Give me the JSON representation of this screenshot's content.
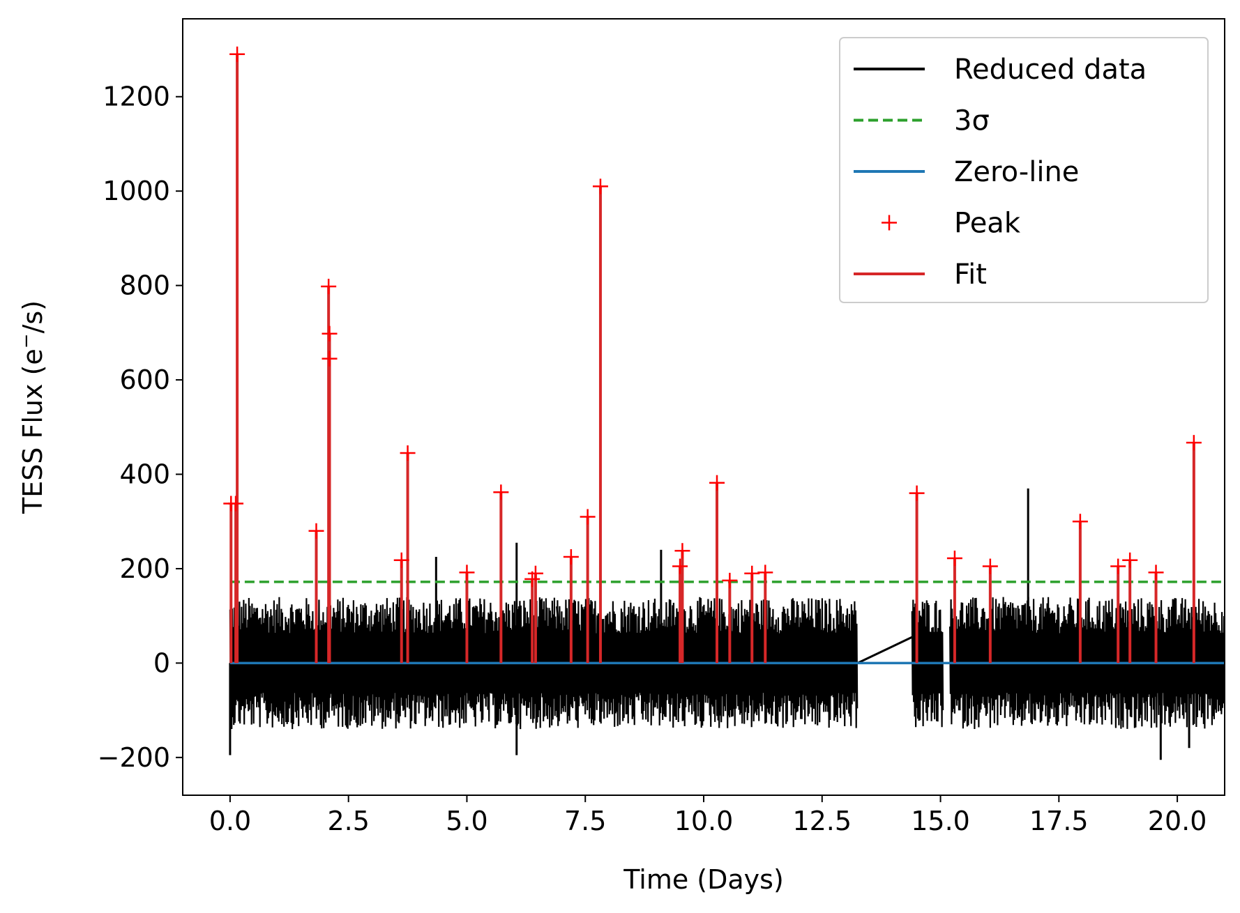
{
  "chart_data": {
    "type": "line",
    "xlabel": "Time (Days)",
    "ylabel_main": "TESS Flux (e",
    "ylabel_sup": "−",
    "ylabel_tail": "/s)",
    "xlim": [
      -1.0,
      21.0
    ],
    "ylim": [
      -280,
      1365
    ],
    "xticks": [
      {
        "v": 0.0,
        "label": "0.0"
      },
      {
        "v": 2.5,
        "label": "2.5"
      },
      {
        "v": 5.0,
        "label": "5.0"
      },
      {
        "v": 7.5,
        "label": "7.5"
      },
      {
        "v": 10.0,
        "label": "10.0"
      },
      {
        "v": 12.5,
        "label": "12.5"
      },
      {
        "v": 15.0,
        "label": "15.0"
      },
      {
        "v": 17.5,
        "label": "17.5"
      },
      {
        "v": 20.0,
        "label": "20.0"
      }
    ],
    "yticks": [
      {
        "v": -200,
        "label": "−200"
      },
      {
        "v": 0,
        "label": "0"
      },
      {
        "v": 200,
        "label": "200"
      },
      {
        "v": 400,
        "label": "400"
      },
      {
        "v": 600,
        "label": "600"
      },
      {
        "v": 800,
        "label": "800"
      },
      {
        "v": 1000,
        "label": "1000"
      },
      {
        "v": 1200,
        "label": "1200"
      }
    ],
    "legend": {
      "placement": "top-right",
      "entries": [
        {
          "label": "Reduced data",
          "color": "#000000",
          "style": "solid"
        },
        {
          "label": "3σ",
          "color": "#2ca02c",
          "style": "dashed"
        },
        {
          "label": "Zero-line",
          "color": "#1f77b4",
          "style": "solid"
        },
        {
          "label": "Peak",
          "color": "#ff0000",
          "style": "marker"
        },
        {
          "label": "Fit",
          "color": "#d62728",
          "style": "solid"
        }
      ]
    },
    "reduced_data": {
      "color": "#000000",
      "segments": [
        {
          "x_start": 0.0,
          "x_end": 13.25,
          "noise_low": -140,
          "noise_high": 140
        },
        {
          "x_start": 14.4,
          "x_end": 15.05,
          "noise_low": -140,
          "noise_high": 140
        },
        {
          "x_start": 15.2,
          "x_end": 21.0,
          "noise_low": -140,
          "noise_high": 140
        }
      ],
      "gap_bridges": [
        {
          "x": [
            13.25,
            14.4
          ],
          "y": [
            0,
            55
          ]
        },
        {
          "x": [
            6.9,
            7.05
          ],
          "y": [
            120,
            -40
          ]
        }
      ],
      "spikes": [
        {
          "x": 6.05,
          "y": 255
        },
        {
          "x": 4.35,
          "y": 225
        },
        {
          "x": 9.1,
          "y": 240
        },
        {
          "x": 16.85,
          "y": 370
        },
        {
          "x": 0.0,
          "y": -195
        },
        {
          "x": 6.05,
          "y": -195
        },
        {
          "x": 19.65,
          "y": -205
        },
        {
          "x": 20.25,
          "y": -180
        }
      ]
    },
    "three_sigma": {
      "y": 172,
      "color": "#2ca02c"
    },
    "zero_line": {
      "y": 0,
      "color": "#1f77b4"
    },
    "peaks": [
      {
        "x": 0.02,
        "y": 338
      },
      {
        "x": 0.12,
        "y": 338
      },
      {
        "x": 0.15,
        "y": 1290
      },
      {
        "x": 1.82,
        "y": 280
      },
      {
        "x": 2.08,
        "y": 798
      },
      {
        "x": 2.1,
        "y": 698
      },
      {
        "x": 2.1,
        "y": 645
      },
      {
        "x": 3.62,
        "y": 218
      },
      {
        "x": 3.75,
        "y": 445
      },
      {
        "x": 5.0,
        "y": 192
      },
      {
        "x": 5.72,
        "y": 362
      },
      {
        "x": 6.38,
        "y": 178
      },
      {
        "x": 6.45,
        "y": 190
      },
      {
        "x": 7.2,
        "y": 225
      },
      {
        "x": 7.55,
        "y": 310
      },
      {
        "x": 7.82,
        "y": 1010
      },
      {
        "x": 9.5,
        "y": 205
      },
      {
        "x": 9.55,
        "y": 238
      },
      {
        "x": 10.28,
        "y": 382
      },
      {
        "x": 10.55,
        "y": 175
      },
      {
        "x": 11.02,
        "y": 190
      },
      {
        "x": 11.3,
        "y": 192
      },
      {
        "x": 14.5,
        "y": 360
      },
      {
        "x": 15.3,
        "y": 222
      },
      {
        "x": 16.05,
        "y": 205
      },
      {
        "x": 17.95,
        "y": 300
      },
      {
        "x": 18.75,
        "y": 205
      },
      {
        "x": 19.0,
        "y": 218
      },
      {
        "x": 19.55,
        "y": 192
      },
      {
        "x": 20.35,
        "y": 467
      }
    ]
  }
}
